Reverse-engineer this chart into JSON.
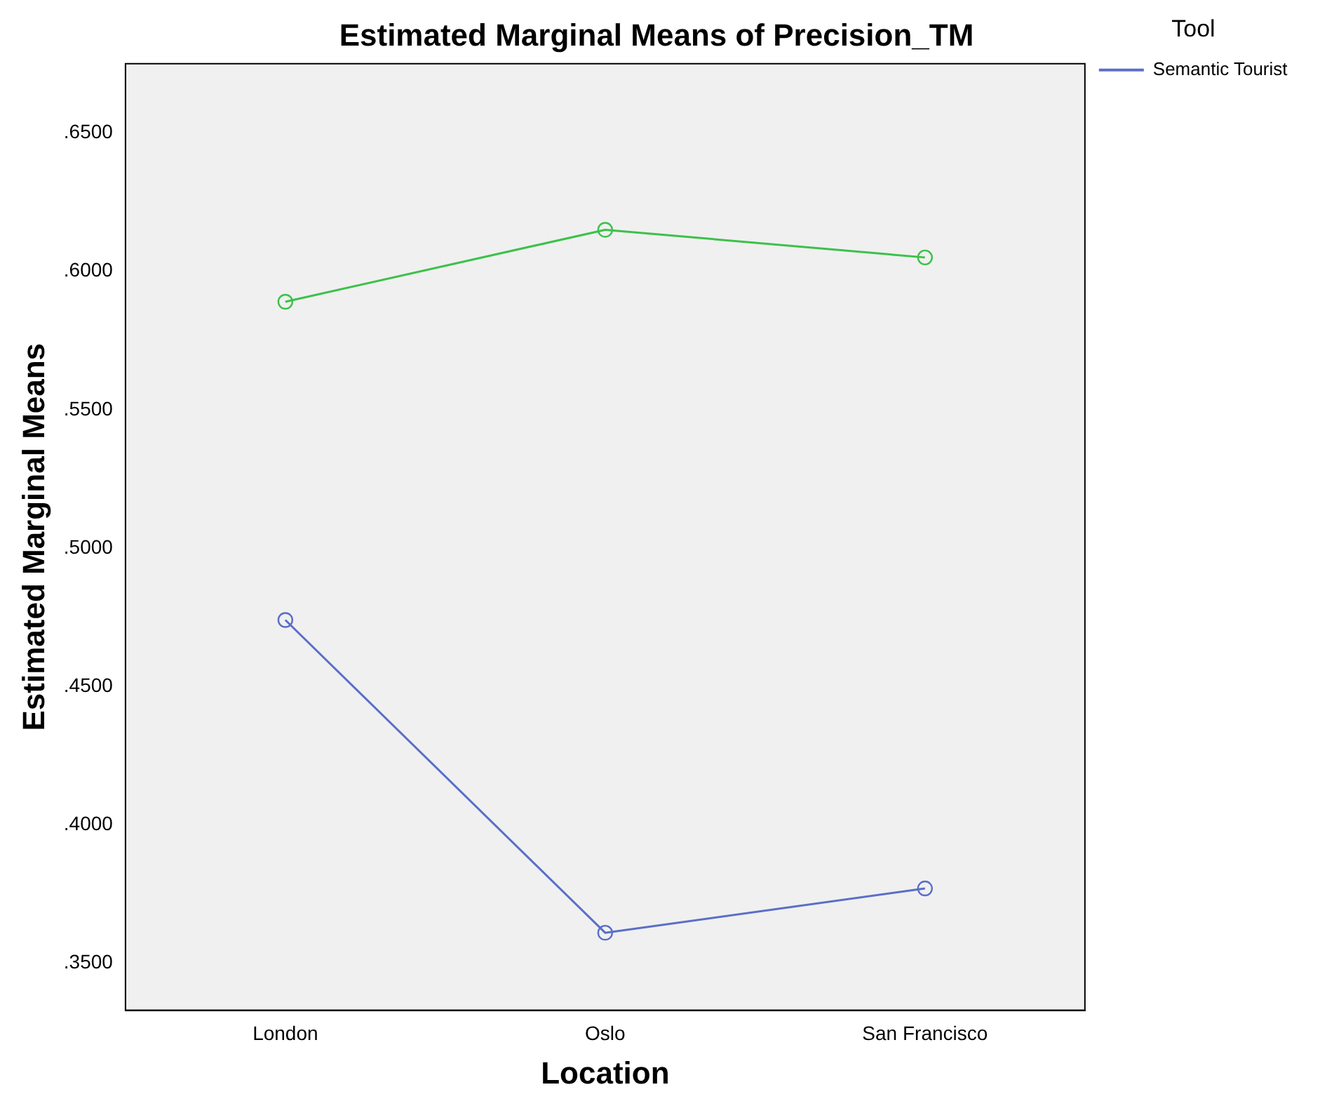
{
  "chart_data": {
    "type": "line",
    "title": "Estimated Marginal Means of Precision_TM",
    "xlabel": "Location",
    "ylabel": "Estimated Marginal Means",
    "legend_title": "Tool",
    "categories": [
      "London",
      "Oslo",
      "San Francisco"
    ],
    "series": [
      {
        "name": "Semantic Tourist",
        "color": "#5a6fc8",
        "values": [
          0.474,
          0.361,
          0.377
        ]
      },
      {
        "color": "#3cc14a",
        "values": [
          0.589,
          0.615,
          0.605
        ]
      }
    ],
    "ylim": [
      0.333,
      0.675
    ],
    "yticks": [
      {
        "value": 0.35,
        "label": ".3500"
      },
      {
        "value": 0.4,
        "label": ".4000"
      },
      {
        "value": 0.45,
        "label": ".4500"
      },
      {
        "value": 0.5,
        "label": ".5000"
      },
      {
        "value": 0.55,
        "label": ".5500"
      },
      {
        "value": 0.6,
        "label": ".6000"
      },
      {
        "value": 0.65,
        "label": ".6500"
      }
    ],
    "grid": false,
    "legend": "top right",
    "marker": "circle",
    "line_style": "solid"
  }
}
